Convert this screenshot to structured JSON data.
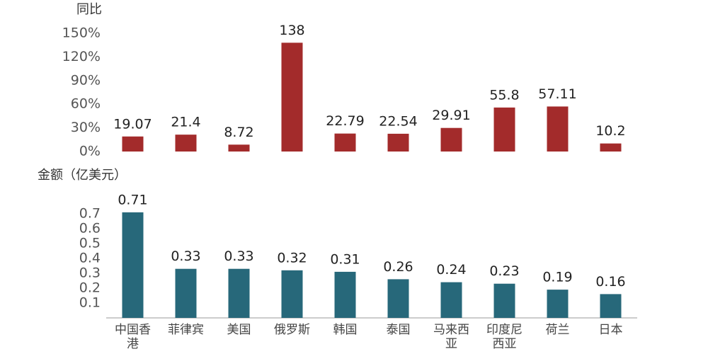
{
  "chart_data": [
    {
      "type": "bar",
      "title": "同比",
      "values": [
        19.07,
        21.4,
        8.72,
        138,
        22.79,
        22.54,
        29.91,
        55.8,
        57.11,
        10.2
      ],
      "color": "#a32b2b",
      "ylim": [
        0,
        150
      ],
      "yticks": [
        {
          "value": 0,
          "label": "0%"
        },
        {
          "value": 30,
          "label": "30%"
        },
        {
          "value": 60,
          "label": "60%"
        },
        {
          "value": 90,
          "label": "90%"
        },
        {
          "value": 120,
          "label": "120%"
        },
        {
          "value": 150,
          "label": "150%"
        }
      ]
    },
    {
      "type": "bar",
      "title": "金额（亿美元）",
      "categories": [
        "中国香港",
        "菲律宾",
        "美国",
        "俄罗斯",
        "韩国",
        "泰国",
        "马来西亚",
        "印度尼西亚",
        "荷兰",
        "日本"
      ],
      "values": [
        0.71,
        0.33,
        0.33,
        0.32,
        0.31,
        0.26,
        0.24,
        0.23,
        0.19,
        0.16
      ],
      "color": "#27687a",
      "ylim": [
        0,
        0.7
      ],
      "yticks": [
        0.1,
        0.2,
        0.3,
        0.4,
        0.5,
        0.6,
        0.7
      ]
    }
  ]
}
